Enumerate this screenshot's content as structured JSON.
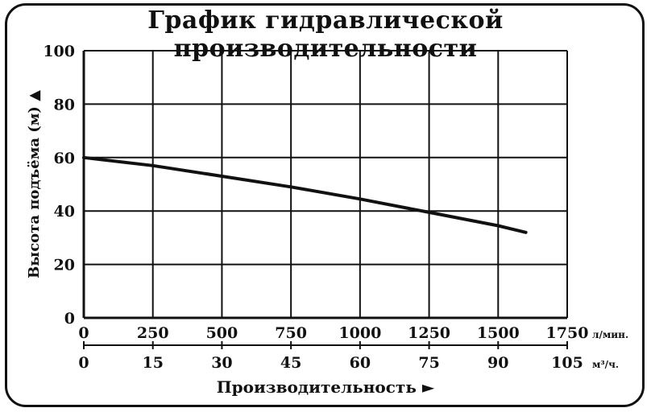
{
  "chart_data": {
    "type": "line",
    "title": "График гидравлической производительности",
    "ylabel": "Высота подъёма (м) ▲",
    "xlabel": "Производительность ►",
    "ylim": [
      0,
      100
    ],
    "yticks": [
      "0",
      "20",
      "40",
      "60",
      "80",
      "100"
    ],
    "x_axes": [
      {
        "unit": "л/мин.",
        "ticks": [
          "0",
          "250",
          "500",
          "750",
          "1000",
          "1250",
          "1500",
          "1750"
        ],
        "range": [
          0,
          1750
        ]
      },
      {
        "unit": "м³/ч.",
        "ticks": [
          "0",
          "15",
          "30",
          "45",
          "60",
          "75",
          "90",
          "105"
        ],
        "range": [
          0,
          105
        ]
      }
    ],
    "grid": true,
    "series": [
      {
        "x": [
          0,
          250,
          500,
          750,
          1000,
          1250,
          1500,
          1600
        ],
        "y": [
          60,
          57,
          53,
          49,
          44.5,
          39.5,
          34.5,
          32
        ]
      }
    ]
  }
}
